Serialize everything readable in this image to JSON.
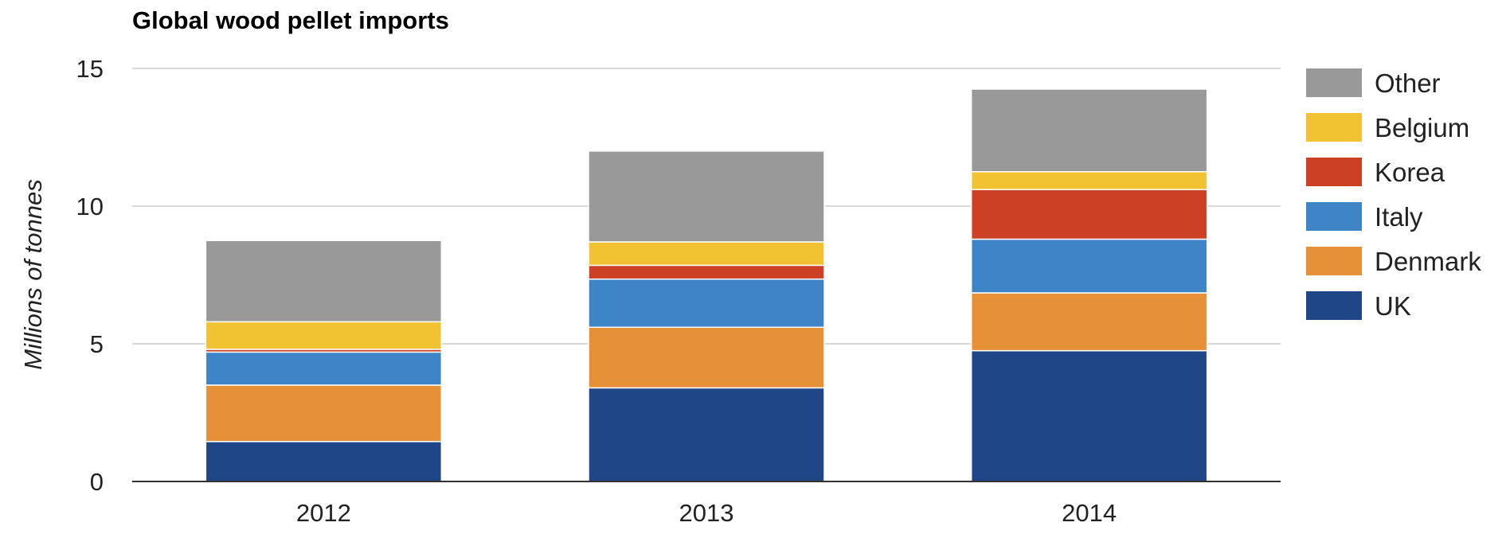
{
  "chart_data": {
    "type": "bar",
    "stacked": true,
    "title": "Global wood pellet imports",
    "xlabel": "",
    "ylabel": "Millions of tonnes",
    "ylim": [
      0,
      15
    ],
    "yticks": [
      0,
      5,
      10,
      15
    ],
    "grid": true,
    "legend_position": "right",
    "categories": [
      "2012",
      "2013",
      "2014"
    ],
    "series": [
      {
        "name": "UK",
        "color": "#1f4788",
        "values": [
          1.45,
          3.4,
          4.75
        ]
      },
      {
        "name": "Denmark",
        "color": "#e69138",
        "values": [
          2.05,
          2.2,
          2.1
        ]
      },
      {
        "name": "Italy",
        "color": "#3d85c6",
        "values": [
          1.2,
          1.75,
          1.95
        ]
      },
      {
        "name": "Korea",
        "color": "#cc4125",
        "values": [
          0.1,
          0.5,
          1.8
        ]
      },
      {
        "name": "Belgium",
        "color": "#f1c232",
        "values": [
          1.0,
          0.85,
          0.65
        ]
      },
      {
        "name": "Other",
        "color": "#999999",
        "values": [
          2.95,
          3.3,
          3.0
        ]
      }
    ]
  }
}
